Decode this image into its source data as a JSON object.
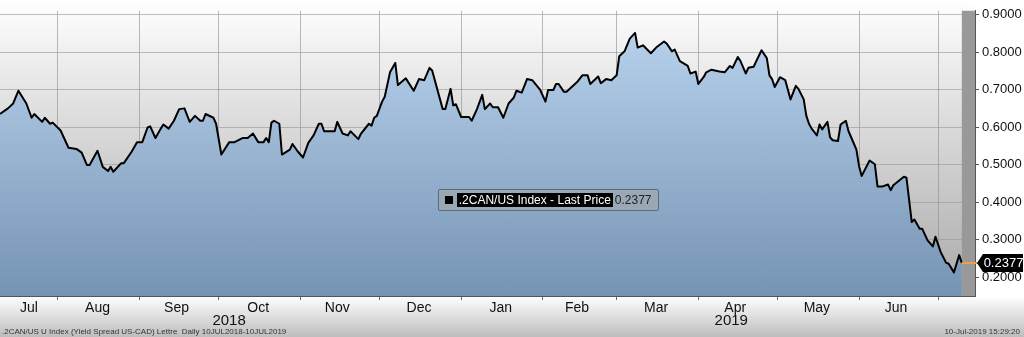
{
  "chart_data": {
    "type": "area",
    "x": [
      "2018-07-10",
      "2018-07-13",
      "2018-07-15",
      "2018-07-17",
      "2018-07-20",
      "2018-07-22",
      "2018-07-23",
      "2018-07-26",
      "2018-07-27",
      "2018-07-29",
      "2018-07-30",
      "2018-08-02",
      "2018-08-05",
      "2018-08-08",
      "2018-08-10",
      "2018-08-12",
      "2018-08-13",
      "2018-08-16",
      "2018-08-18",
      "2018-08-20",
      "2018-08-21",
      "2018-08-22",
      "2018-08-25",
      "2018-08-26",
      "2018-08-29",
      "2018-08-31",
      "2018-09-02",
      "2018-09-04",
      "2018-09-05",
      "2018-09-07",
      "2018-09-09",
      "2018-09-10",
      "2018-09-12",
      "2018-09-14",
      "2018-09-16",
      "2018-09-18",
      "2018-09-20",
      "2018-09-22",
      "2018-09-24",
      "2018-09-25",
      "2018-09-26",
      "2018-09-29",
      "2018-09-30",
      "2018-10-02",
      "2018-10-05",
      "2018-10-07",
      "2018-10-10",
      "2018-10-12",
      "2018-10-14",
      "2018-10-16",
      "2018-10-18",
      "2018-10-19",
      "2018-10-20",
      "2018-10-21",
      "2018-10-22",
      "2018-10-24",
      "2018-10-25",
      "2018-10-28",
      "2018-10-29",
      "2018-10-31",
      "2018-11-02",
      "2018-11-04",
      "2018-11-06",
      "2018-11-08",
      "2018-11-09",
      "2018-11-10",
      "2018-11-14",
      "2018-11-15",
      "2018-11-17",
      "2018-11-19",
      "2018-11-20",
      "2018-11-23",
      "2018-11-24",
      "2018-11-27",
      "2018-11-28",
      "2018-11-29",
      "2018-11-30",
      "2018-12-02",
      "2018-12-03",
      "2018-12-05",
      "2018-12-07",
      "2018-12-08",
      "2018-12-11",
      "2018-12-14",
      "2018-12-16",
      "2018-12-18",
      "2018-12-20",
      "2018-12-21",
      "2018-12-25",
      "2018-12-26",
      "2018-12-28",
      "2018-12-29",
      "2018-12-30",
      "2019-01-01",
      "2019-01-04",
      "2019-01-05",
      "2019-01-07",
      "2019-01-09",
      "2019-01-10",
      "2019-01-12",
      "2019-01-13",
      "2019-01-15",
      "2019-01-17",
      "2019-01-19",
      "2019-01-21",
      "2019-01-22",
      "2019-01-24",
      "2019-01-26",
      "2019-01-28",
      "2019-01-31",
      "2019-02-02",
      "2019-02-03",
      "2019-02-05",
      "2019-02-06",
      "2019-02-07",
      "2019-02-09",
      "2019-02-10",
      "2019-02-14",
      "2019-02-16",
      "2019-02-18",
      "2019-02-19",
      "2019-02-22",
      "2019-02-23",
      "2019-02-25",
      "2019-02-27",
      "2019-03-01",
      "2019-03-02",
      "2019-03-04",
      "2019-03-06",
      "2019-03-08",
      "2019-03-09",
      "2019-03-11",
      "2019-03-14",
      "2019-03-16",
      "2019-03-19",
      "2019-03-20",
      "2019-03-22",
      "2019-03-23",
      "2019-03-25",
      "2019-03-28",
      "2019-03-29",
      "2019-03-31",
      "2019-04-01",
      "2019-04-03",
      "2019-04-04",
      "2019-04-06",
      "2019-04-09",
      "2019-04-11",
      "2019-04-13",
      "2019-04-14",
      "2019-04-16",
      "2019-04-17",
      "2019-04-19",
      "2019-04-20",
      "2019-04-22",
      "2019-04-23",
      "2019-04-25",
      "2019-04-27",
      "2019-04-28",
      "2019-04-29",
      "2019-04-30",
      "2019-05-02",
      "2019-05-04",
      "2019-05-06",
      "2019-05-08",
      "2019-05-09",
      "2019-05-11",
      "2019-05-12",
      "2019-05-13",
      "2019-05-14",
      "2019-05-16",
      "2019-05-17",
      "2019-05-18",
      "2019-05-20",
      "2019-05-21",
      "2019-05-22",
      "2019-05-24",
      "2019-05-25",
      "2019-05-27",
      "2019-05-28",
      "2019-05-29",
      "2019-05-31",
      "2019-06-01",
      "2019-06-02",
      "2019-06-05",
      "2019-06-07",
      "2019-06-08",
      "2019-06-10",
      "2019-06-12",
      "2019-06-13",
      "2019-06-14",
      "2019-06-18",
      "2019-06-19",
      "2019-06-21",
      "2019-06-22",
      "2019-06-24",
      "2019-06-25",
      "2019-06-27",
      "2019-06-29",
      "2019-06-30",
      "2019-07-02",
      "2019-07-04",
      "2019-07-05",
      "2019-07-07",
      "2019-07-09",
      "2019-07-10"
    ],
    "series": [
      {
        "name": ".2CAN/US Index - Last Price",
        "color": "#000000",
        "values": [
          0.635,
          0.65,
          0.663,
          0.697,
          0.663,
          0.625,
          0.635,
          0.614,
          0.625,
          0.609,
          0.612,
          0.591,
          0.545,
          0.542,
          0.532,
          0.499,
          0.499,
          0.537,
          0.494,
          0.483,
          0.494,
          0.481,
          0.504,
          0.504,
          0.535,
          0.56,
          0.56,
          0.599,
          0.602,
          0.571,
          0.596,
          0.607,
          0.596,
          0.617,
          0.648,
          0.65,
          0.614,
          0.63,
          0.617,
          0.617,
          0.635,
          0.625,
          0.609,
          0.527,
          0.56,
          0.56,
          0.571,
          0.571,
          0.583,
          0.56,
          0.56,
          0.571,
          0.56,
          0.612,
          0.617,
          0.609,
          0.527,
          0.54,
          0.555,
          0.535,
          0.519,
          0.558,
          0.578,
          0.609,
          0.609,
          0.589,
          0.589,
          0.614,
          0.583,
          0.578,
          0.589,
          0.568,
          0.583,
          0.609,
          0.604,
          0.625,
          0.63,
          0.668,
          0.681,
          0.746,
          0.771,
          0.712,
          0.73,
          0.697,
          0.728,
          0.725,
          0.758,
          0.751,
          0.648,
          0.648,
          0.702,
          0.658,
          0.661,
          0.627,
          0.627,
          0.617,
          0.648,
          0.686,
          0.648,
          0.663,
          0.653,
          0.653,
          0.625,
          0.663,
          0.679,
          0.697,
          0.692,
          0.728,
          0.725,
          0.699,
          0.668,
          0.699,
          0.699,
          0.715,
          0.715,
          0.694,
          0.694,
          0.72,
          0.738,
          0.738,
          0.715,
          0.735,
          0.717,
          0.728,
          0.725,
          0.738,
          0.789,
          0.802,
          0.836,
          0.851,
          0.812,
          0.818,
          0.797,
          0.812,
          0.828,
          0.823,
          0.802,
          0.807,
          0.776,
          0.763,
          0.743,
          0.748,
          0.715,
          0.733,
          0.746,
          0.753,
          0.748,
          0.746,
          0.763,
          0.758,
          0.787,
          0.776,
          0.743,
          0.758,
          0.761,
          0.776,
          0.805,
          0.784,
          0.738,
          0.728,
          0.707,
          0.733,
          0.725,
          0.674,
          0.71,
          0.702,
          0.674,
          0.63,
          0.609,
          0.596,
          0.578,
          0.607,
          0.594,
          0.614,
          0.573,
          0.565,
          0.563,
          0.607,
          0.617,
          0.589,
          0.573,
          0.54,
          0.496,
          0.47,
          0.511,
          0.501,
          0.442,
          0.442,
          0.447,
          0.432,
          0.445,
          0.468,
          0.465,
          0.347,
          0.354,
          0.329,
          0.329,
          0.298,
          0.282,
          0.308,
          0.267,
          0.239,
          0.236,
          0.213,
          0.259,
          0.238
        ]
      }
    ],
    "xlim": [
      "2018-07-10",
      "2019-07-15"
    ],
    "xticks": [
      {
        "value": "2018-07-21",
        "label": "Jul"
      },
      {
        "value": "2018-08-01",
        "label": null
      },
      {
        "value": "2018-08-16",
        "label": "Aug"
      },
      {
        "value": "2018-09-01",
        "label": null
      },
      {
        "value": "2018-09-15",
        "label": "Sep"
      },
      {
        "value": "2018-10-01",
        "label": null
      },
      {
        "value": "2018-10-16",
        "label": "Oct"
      },
      {
        "value": "2018-11-01",
        "label": null
      },
      {
        "value": "2018-11-15",
        "label": "Nov"
      },
      {
        "value": "2018-12-01",
        "label": null
      },
      {
        "value": "2018-12-16",
        "label": "Dec"
      },
      {
        "value": "2019-01-01",
        "label": null
      },
      {
        "value": "2019-01-16",
        "label": "Jan"
      },
      {
        "value": "2019-02-01",
        "label": null
      },
      {
        "value": "2019-02-14",
        "label": "Feb"
      },
      {
        "value": "2019-03-01",
        "label": null
      },
      {
        "value": "2019-03-16",
        "label": "Mar"
      },
      {
        "value": "2019-04-01",
        "label": null
      },
      {
        "value": "2019-04-15",
        "label": "Apr"
      },
      {
        "value": "2019-05-01",
        "label": null
      },
      {
        "value": "2019-05-16",
        "label": "May"
      },
      {
        "value": "2019-06-01",
        "label": null
      },
      {
        "value": "2019-06-15",
        "label": "Jun"
      },
      {
        "value": "2019-07-01",
        "label": null
      }
    ],
    "ylim": [
      0.15,
      0.91
    ],
    "yticks": [
      {
        "value": 0.2,
        "label": "0.2000"
      },
      {
        "value": 0.3,
        "label": "0.3000"
      },
      {
        "value": 0.4,
        "label": "0.4000"
      },
      {
        "value": 0.5,
        "label": "0.5000"
      },
      {
        "value": 0.6,
        "label": "0.6000"
      },
      {
        "value": 0.7,
        "label": "0.7000"
      },
      {
        "value": 0.8,
        "label": "0.8000"
      },
      {
        "value": 0.9,
        "label": "0.9000"
      }
    ],
    "grid": true,
    "legend": "center",
    "bands": [
      {
        "axis": "x",
        "from": "2019-07-10",
        "to": "2019-07-15",
        "color": "#999999"
      }
    ],
    "annotations": [
      "2018",
      "2019",
      ".2CAN/US U Index (Yield Spread US-CAD) Lettre  Daily 10JUL2018-10JUL2019",
      "10-Jul-2019 15:29:20",
      {
        "text": "0.2377",
        "x": "2019-07-10",
        "y": 0.238
      }
    ]
  }
}
